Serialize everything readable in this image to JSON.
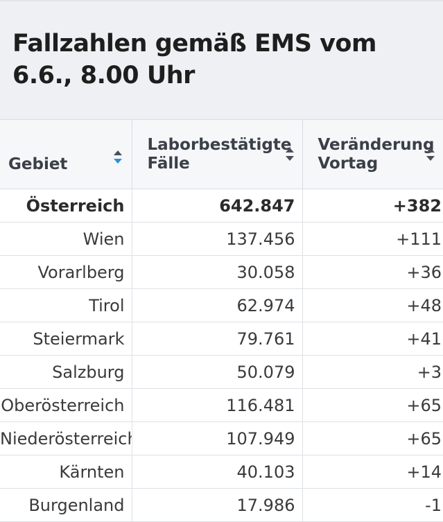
{
  "title": "Fallzahlen gemäß EMS vom 6.6., 8.00 Uhr",
  "columns": [
    {
      "label": "Gebiet",
      "sort_icon": "sort-active-icon"
    },
    {
      "label": "Laborbestätigte Fälle",
      "sort_icon": "sort-icon"
    },
    {
      "label": "Veränderung Vortag",
      "sort_icon": "sort-icon"
    }
  ],
  "rows": [
    {
      "region": "Österreich",
      "cases": "642.847",
      "change": "+382"
    },
    {
      "region": "Wien",
      "cases": "137.456",
      "change": "+111"
    },
    {
      "region": "Vorarlberg",
      "cases": "30.058",
      "change": "+36"
    },
    {
      "region": "Tirol",
      "cases": "62.974",
      "change": "+48"
    },
    {
      "region": "Steiermark",
      "cases": "79.761",
      "change": "+41"
    },
    {
      "region": "Salzburg",
      "cases": "50.079",
      "change": "+3"
    },
    {
      "region": "Oberösterreich",
      "cases": "116.481",
      "change": "+65"
    },
    {
      "region": "Niederösterreich",
      "cases": "107.949",
      "change": "+65"
    },
    {
      "region": "Kärnten",
      "cases": "40.103",
      "change": "+14"
    },
    {
      "region": "Burgenland",
      "cases": "17.986",
      "change": "-1"
    }
  ],
  "colors": {
    "sort_active": "#2b8fd6",
    "sort_inactive": "#4a4f57",
    "header_bg": "#f5f7f9",
    "title_bg": "#eef0f3"
  }
}
